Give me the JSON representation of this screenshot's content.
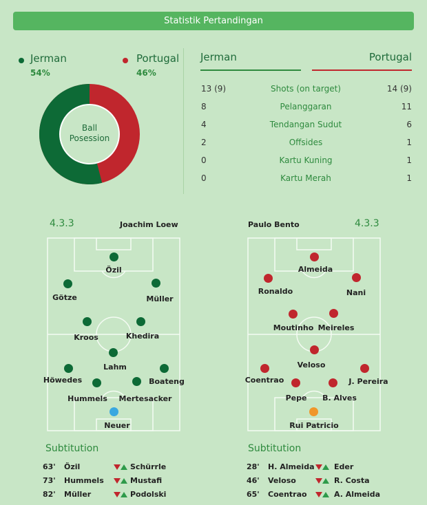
{
  "header": {
    "title": "Statistik Pertandingan"
  },
  "colors": {
    "germany": "#0d6a36",
    "portugal": "#c0262d",
    "keeper_de": "#3aa8e0",
    "keeper_pt": "#f0962a",
    "accent": "#2e8a3e"
  },
  "possession": {
    "left_team": "Jerman",
    "left_pct": "54%",
    "left_value": 54,
    "right_team": "Portugal",
    "right_pct": "46%",
    "right_value": 46,
    "center_label_1": "Ball",
    "center_label_2": "Posession"
  },
  "stats": {
    "left_team": "Jerman",
    "right_team": "Portugal",
    "rows": [
      {
        "left": "13 (9)",
        "label": "Shots (on target)",
        "right": "14 (9)"
      },
      {
        "left": "8",
        "label": "Pelanggaran",
        "right": "11"
      },
      {
        "left": "4",
        "label": "Tendangan Sudut",
        "right": "6"
      },
      {
        "left": "2",
        "label": "Offsides",
        "right": "1"
      },
      {
        "left": "0",
        "label": "Kartu Kuning",
        "right": "1"
      },
      {
        "left": "0",
        "label": "Kartu Merah",
        "right": "1"
      }
    ]
  },
  "lineup_de": {
    "formation": "4.3.3",
    "coach": "Joachim Loew",
    "players": [
      "Özil",
      "Götze",
      "Müller",
      "Kroos",
      "Khedira",
      "Lahm",
      "Höwedes",
      "Hummels",
      "Mertesacker",
      "Boateng",
      "Neuer"
    ]
  },
  "lineup_pt": {
    "formation": "4.3.3",
    "coach": "Paulo Bento",
    "players": [
      "Almeida",
      "Ronaldo",
      "Nani",
      "Moutinho",
      "Meireles",
      "Veloso",
      "Coentrao",
      "Pepe",
      "B. Alves",
      "J. Pereira",
      "Rui Patricio"
    ]
  },
  "subs_de": {
    "title": "Subtitution",
    "rows": [
      {
        "min": "63'",
        "out": "Özil",
        "in": "Schürrle"
      },
      {
        "min": "73'",
        "out": "Hummels",
        "in": "Mustafi"
      },
      {
        "min": "82'",
        "out": "Müller",
        "in": "Podolski"
      }
    ]
  },
  "subs_pt": {
    "title": "Subtitution",
    "rows": [
      {
        "min": "28'",
        "out": "H. Almeida",
        "in": "Eder"
      },
      {
        "min": "46'",
        "out": "Veloso",
        "in": "R. Costa"
      },
      {
        "min": "65'",
        "out": "Coentrao",
        "in": "A. Almeida"
      }
    ]
  }
}
